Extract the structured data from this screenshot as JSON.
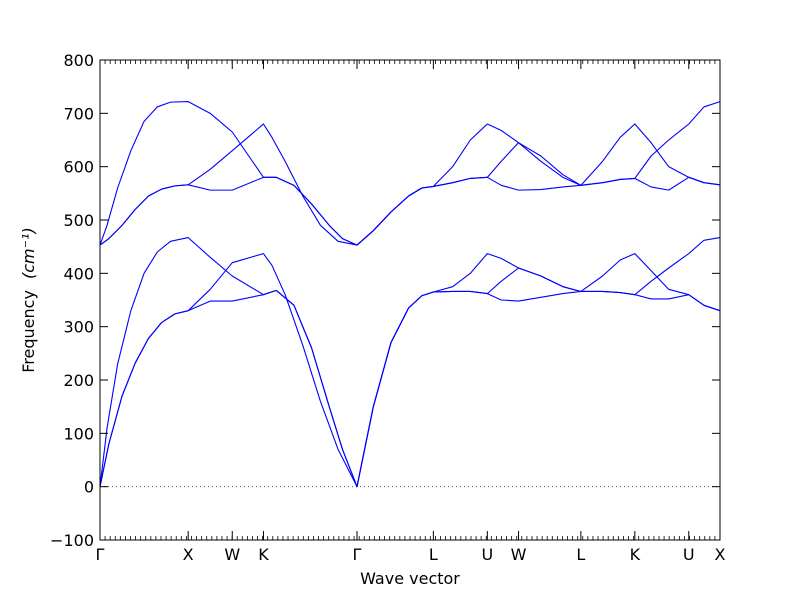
{
  "chart_data": {
    "type": "line",
    "title": "",
    "xlabel": "Wave vector",
    "ylabel": "Frequency",
    "ylabel_unit": "(cm⁻¹)",
    "ylim": [
      -100,
      800
    ],
    "yticks": [
      -100,
      0,
      100,
      200,
      300,
      400,
      500,
      600,
      700,
      800
    ],
    "grid": false,
    "zero_line": {
      "y": 0,
      "style": "dotted",
      "color": "#555555"
    },
    "line_color": "#0000ff",
    "path_points": [
      {
        "label": "Γ",
        "x": 0.0
      },
      {
        "label": "X",
        "x": 1.0
      },
      {
        "label": "W",
        "x": 1.5
      },
      {
        "label": "K",
        "x": 1.854
      },
      {
        "label": "Γ",
        "x": 2.915
      },
      {
        "label": "L",
        "x": 3.781
      },
      {
        "label": "U",
        "x": 4.393
      },
      {
        "label": "W",
        "x": 4.747
      },
      {
        "label": "L",
        "x": 5.454
      },
      {
        "label": "K",
        "x": 6.066
      },
      {
        "label": "U",
        "x": 6.678
      },
      {
        "label": "X",
        "x": 7.032
      }
    ],
    "xlim": [
      0,
      7.032
    ],
    "series": [
      {
        "x": [
          0,
          0.1,
          0.25,
          0.4,
          0.55,
          0.7,
          0.85,
          1.0,
          1.25,
          1.5,
          1.854,
          2.0,
          2.2,
          2.4,
          2.6,
          2.75,
          2.915,
          3.1,
          3.3,
          3.5,
          3.65,
          3.781,
          4.0,
          4.2,
          4.393,
          4.55,
          4.747,
          5.0,
          5.25,
          5.454,
          5.7,
          5.9,
          6.066,
          6.25,
          6.45,
          6.678,
          6.85,
          7.032
        ],
        "y": [
          0,
          80,
          170,
          232,
          278,
          308,
          324,
          330,
          348,
          348,
          360,
          368,
          340,
          260,
          150,
          70,
          0,
          150,
          270,
          335,
          358,
          365,
          366,
          366,
          362,
          350,
          348,
          355,
          362,
          366,
          366,
          364,
          360,
          352,
          352,
          360,
          340,
          330
        ]
      },
      {
        "x": [
          0,
          0.1,
          0.25,
          0.4,
          0.55,
          0.7,
          0.85,
          1.0,
          1.25,
          1.5,
          1.854,
          1.95,
          2.1,
          2.3,
          2.5,
          2.7,
          2.915,
          3.1,
          3.3,
          3.5,
          3.65,
          3.781,
          4.0,
          4.2,
          4.393,
          4.55,
          4.747,
          5.0,
          5.25,
          5.454,
          5.7,
          5.9,
          6.066,
          6.25,
          6.45,
          6.678,
          6.85,
          7.032
        ],
        "y": [
          0,
          80,
          170,
          232,
          278,
          308,
          324,
          330,
          370,
          420,
          437,
          415,
          360,
          265,
          160,
          70,
          0,
          150,
          270,
          335,
          358,
          365,
          375,
          400,
          437,
          428,
          410,
          395,
          375,
          366,
          395,
          425,
          437,
          405,
          370,
          360,
          340,
          330
        ]
      },
      {
        "x": [
          0,
          0.08,
          0.2,
          0.35,
          0.5,
          0.65,
          0.8,
          1.0,
          1.25,
          1.5,
          1.854,
          2.0,
          2.2,
          2.4,
          2.6,
          2.75,
          2.915,
          3.1,
          3.3,
          3.5,
          3.65,
          3.781,
          4.0,
          4.2,
          4.393,
          4.55,
          4.747,
          5.0,
          5.25,
          5.454,
          5.7,
          5.9,
          6.066,
          6.25,
          6.45,
          6.678,
          6.85,
          7.032
        ],
        "y": [
          0,
          110,
          230,
          330,
          400,
          440,
          460,
          467,
          430,
          395,
          360,
          368,
          340,
          260,
          150,
          70,
          0,
          150,
          270,
          335,
          358,
          365,
          366,
          366,
          362,
          385,
          410,
          395,
          375,
          366,
          366,
          364,
          360,
          385,
          410,
          437,
          462,
          467
        ]
      },
      {
        "x": [
          0,
          0.1,
          0.25,
          0.4,
          0.55,
          0.7,
          0.85,
          1.0,
          1.25,
          1.5,
          1.854,
          2.0,
          2.2,
          2.4,
          2.6,
          2.75,
          2.915,
          3.1,
          3.3,
          3.5,
          3.65,
          3.781,
          4.0,
          4.2,
          4.393,
          4.55,
          4.747,
          5.0,
          5.25,
          5.454,
          5.7,
          5.9,
          6.066,
          6.25,
          6.45,
          6.678,
          6.85,
          7.032
        ],
        "y": [
          453,
          465,
          490,
          520,
          545,
          558,
          564,
          566,
          556,
          556,
          580,
          580,
          565,
          530,
          490,
          465,
          453,
          480,
          515,
          545,
          560,
          563,
          570,
          578,
          580,
          565,
          556,
          557,
          562,
          565,
          570,
          576,
          578,
          562,
          556,
          580,
          570,
          566
        ]
      },
      {
        "x": [
          0,
          0.1,
          0.25,
          0.4,
          0.55,
          0.7,
          0.85,
          1.0,
          1.25,
          1.5,
          1.854,
          1.95,
          2.1,
          2.3,
          2.5,
          2.7,
          2.915,
          3.1,
          3.3,
          3.5,
          3.65,
          3.781,
          4.0,
          4.2,
          4.393,
          4.55,
          4.747,
          5.0,
          5.25,
          5.454,
          5.7,
          5.9,
          6.066,
          6.25,
          6.45,
          6.678,
          6.85,
          7.032
        ],
        "y": [
          453,
          465,
          490,
          520,
          545,
          558,
          564,
          566,
          595,
          630,
          680,
          655,
          610,
          545,
          490,
          460,
          453,
          480,
          515,
          545,
          560,
          563,
          600,
          650,
          680,
          668,
          645,
          610,
          580,
          565,
          610,
          655,
          680,
          645,
          600,
          580,
          570,
          566
        ]
      },
      {
        "x": [
          0,
          0.08,
          0.2,
          0.35,
          0.5,
          0.65,
          0.8,
          1.0,
          1.25,
          1.5,
          1.854,
          2.0,
          2.2,
          2.4,
          2.6,
          2.75,
          2.915,
          3.1,
          3.3,
          3.5,
          3.65,
          3.781,
          4.0,
          4.2,
          4.393,
          4.55,
          4.747,
          5.0,
          5.25,
          5.454,
          5.7,
          5.9,
          6.066,
          6.25,
          6.45,
          6.678,
          6.85,
          7.032
        ],
        "y": [
          453,
          490,
          560,
          630,
          685,
          712,
          721,
          722,
          700,
          665,
          580,
          580,
          565,
          530,
          490,
          465,
          453,
          480,
          515,
          545,
          560,
          563,
          570,
          578,
          580,
          610,
          645,
          620,
          585,
          565,
          570,
          576,
          578,
          620,
          650,
          680,
          712,
          722
        ]
      }
    ]
  }
}
